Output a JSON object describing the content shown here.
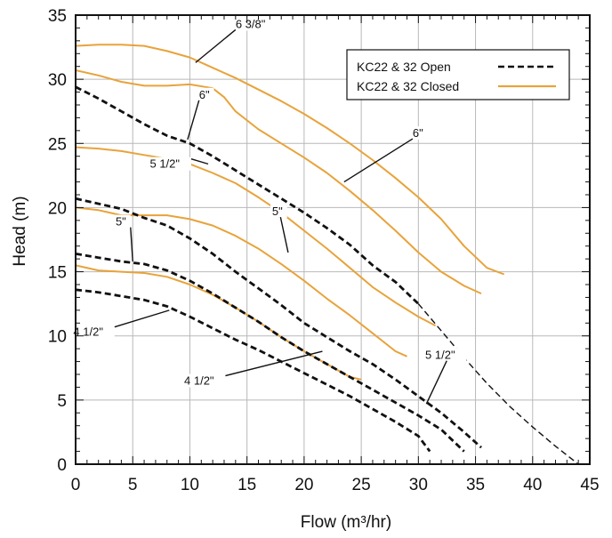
{
  "chart_data": {
    "type": "line",
    "xlabel": "Flow (m³/hr)",
    "ylabel": "Head (m)",
    "xlim": [
      0,
      45
    ],
    "ylim": [
      0,
      35
    ],
    "xticks": [
      "0",
      "5",
      "10",
      "15",
      "20",
      "25",
      "30",
      "35",
      "40",
      "45"
    ],
    "yticks": [
      "0",
      "5",
      "10",
      "15",
      "20",
      "25",
      "30",
      "35"
    ],
    "grid": true,
    "legend": {
      "placement": "top-right",
      "entries": [
        {
          "name": "KC22 & 32 Open",
          "style": "dashed",
          "color": "#111111"
        },
        {
          "name": "KC22 & 32 Closed",
          "style": "solid",
          "color": "#E8A33B"
        }
      ]
    },
    "colors": {
      "closed": "#E8A33B",
      "open": "#111111",
      "grid": "#b8b8b8"
    },
    "series": [
      {
        "group": "closed",
        "label": "6 3/8\"",
        "x": [
          0,
          2,
          4,
          6,
          8,
          10,
          12,
          14,
          16,
          18,
          20,
          22,
          24,
          26,
          28,
          30,
          32,
          34,
          36,
          37.5
        ],
        "y": [
          32.6,
          32.7,
          32.7,
          32.6,
          32.2,
          31.7,
          30.9,
          30.1,
          29.2,
          28.3,
          27.3,
          26.2,
          25.0,
          23.7,
          22.3,
          20.8,
          19.1,
          17.0,
          15.3,
          14.8
        ]
      },
      {
        "group": "closed",
        "label": "6\"",
        "x": [
          0,
          2,
          4,
          6,
          8,
          10,
          12,
          13,
          14,
          16,
          18,
          20,
          22,
          24,
          26,
          28,
          30,
          32,
          34,
          35.5
        ],
        "y": [
          30.7,
          30.3,
          29.8,
          29.5,
          29.5,
          29.6,
          29.3,
          28.6,
          27.5,
          26.1,
          25.0,
          23.9,
          22.7,
          21.3,
          19.8,
          18.2,
          16.5,
          15.0,
          13.9,
          13.3
        ]
      },
      {
        "group": "closed",
        "label": "5 1/2\"",
        "x": [
          0,
          2,
          4,
          6,
          8,
          10,
          12,
          14,
          16,
          18,
          20,
          22,
          24,
          26,
          28,
          30,
          31.5
        ],
        "y": [
          24.7,
          24.6,
          24.4,
          24.1,
          23.8,
          23.4,
          22.7,
          21.9,
          20.8,
          19.6,
          18.2,
          16.8,
          15.3,
          13.8,
          12.6,
          11.5,
          10.8
        ]
      },
      {
        "group": "closed",
        "label": "5\"",
        "x": [
          0,
          2,
          4,
          6,
          8,
          10,
          12,
          14,
          16,
          18,
          20,
          22,
          24,
          26,
          28,
          29
        ],
        "y": [
          20.0,
          19.8,
          19.4,
          19.4,
          19.4,
          19.1,
          18.6,
          17.8,
          16.8,
          15.6,
          14.3,
          12.9,
          11.6,
          10.2,
          8.8,
          8.4
        ]
      },
      {
        "group": "closed",
        "label": "4 1/2\"",
        "x": [
          0,
          2,
          4,
          6,
          8,
          10,
          12,
          14,
          16,
          18,
          20,
          22,
          24,
          25
        ],
        "y": [
          15.5,
          15.1,
          15.0,
          14.9,
          14.6,
          14.0,
          13.2,
          12.2,
          11.1,
          9.9,
          8.8,
          7.8,
          6.8,
          6.6
        ]
      },
      {
        "group": "open",
        "label": "6\"",
        "x": [
          0,
          2,
          4,
          6,
          8,
          10,
          12,
          14,
          16,
          18,
          20,
          22,
          24,
          26,
          28,
          30,
          32,
          34,
          36,
          38,
          40,
          42,
          44
        ],
        "y": [
          29.4,
          28.5,
          27.5,
          26.5,
          25.6,
          25.0,
          24.0,
          22.9,
          21.8,
          20.7,
          19.6,
          18.4,
          17.1,
          15.5,
          14.2,
          12.5,
          10.4,
          8.3,
          6.3,
          4.5,
          2.9,
          1.4,
          0.0
        ]
      },
      {
        "group": "open",
        "label": "5 1/2\"",
        "x": [
          0,
          2,
          4,
          6,
          8,
          10,
          12,
          14,
          16,
          18,
          20,
          22,
          24,
          26,
          28,
          30,
          32,
          34,
          35.5
        ],
        "y": [
          20.7,
          20.3,
          19.9,
          19.2,
          18.6,
          17.6,
          16.4,
          15.0,
          13.7,
          12.4,
          11.0,
          9.9,
          8.8,
          7.8,
          6.6,
          5.3,
          4.0,
          2.5,
          1.3
        ]
      },
      {
        "group": "open",
        "label": "5\"",
        "x": [
          0,
          2,
          4,
          6,
          8,
          10,
          12,
          14,
          16,
          18,
          20,
          22,
          24,
          26,
          28,
          30,
          32,
          34
        ],
        "y": [
          16.4,
          16.1,
          15.8,
          15.6,
          15.1,
          14.3,
          13.3,
          12.2,
          11.1,
          9.9,
          8.8,
          7.8,
          6.8,
          5.8,
          4.8,
          3.8,
          2.7,
          1.0
        ]
      },
      {
        "group": "open",
        "label": "4 1/2\"",
        "x": [
          0,
          2,
          4,
          6,
          8,
          10,
          12,
          14,
          16,
          18,
          20,
          22,
          24,
          26,
          28,
          30,
          31
        ],
        "y": [
          13.6,
          13.4,
          13.1,
          12.8,
          12.3,
          11.5,
          10.6,
          9.7,
          8.9,
          8.0,
          7.1,
          6.2,
          5.3,
          4.3,
          3.3,
          2.2,
          1.0
        ]
      }
    ],
    "annotations": [
      {
        "text": "6 3/8\"",
        "at": [
          14.0,
          34.0
        ],
        "target": [
          10.5,
          31.3
        ]
      },
      {
        "text": "6\"",
        "at": [
          10.8,
          28.5
        ],
        "target": [
          9.8,
          25.3
        ]
      },
      {
        "text": "6\"",
        "at": [
          29.5,
          25.5
        ],
        "target": [
          23.5,
          22.0
        ]
      },
      {
        "text": "5 1/2\"",
        "at": [
          6.5,
          23.1
        ],
        "target": [
          11.6,
          23.4
        ]
      },
      {
        "text": "5\"",
        "at": [
          17.2,
          19.4
        ],
        "target": [
          18.6,
          16.5
        ]
      },
      {
        "text": "5\"",
        "at": [
          3.5,
          18.6
        ],
        "target": [
          5.0,
          15.8
        ]
      },
      {
        "text": "4 1/2\"",
        "at": [
          -0.2,
          10.0
        ],
        "target": [
          8.2,
          12.0
        ]
      },
      {
        "text": "4 1/2\"",
        "at": [
          9.5,
          6.2
        ],
        "target": [
          21.6,
          8.8
        ]
      },
      {
        "text": "5 1/2\"",
        "at": [
          30.6,
          8.2
        ],
        "target": [
          30.7,
          4.7
        ]
      }
    ]
  }
}
